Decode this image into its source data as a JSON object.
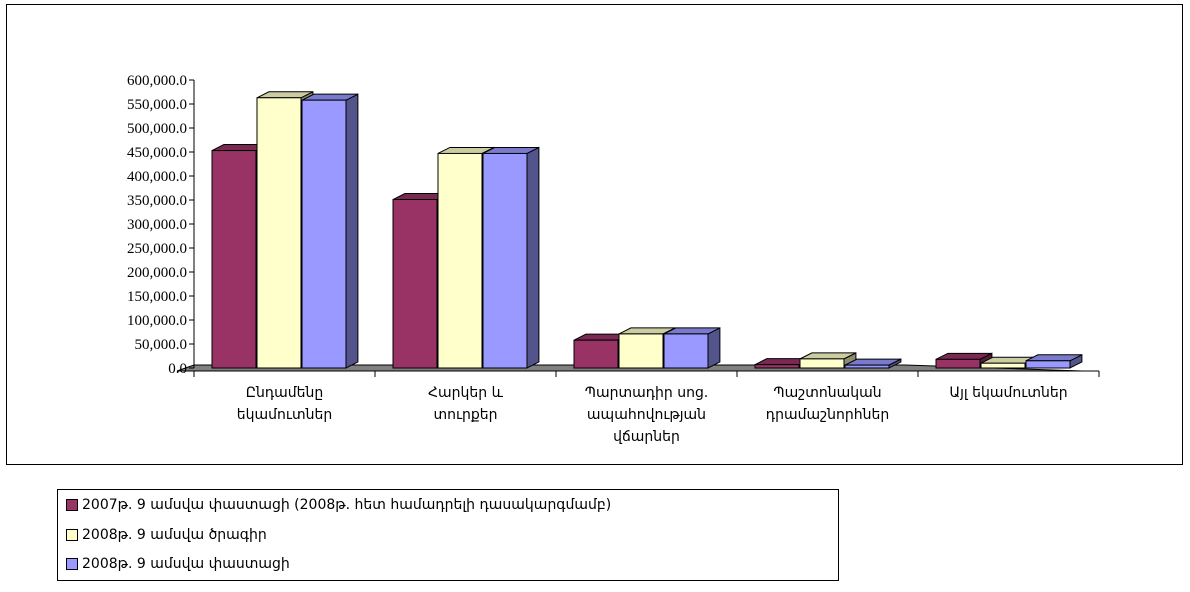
{
  "chart_data": {
    "type": "bar",
    "categories": [
      [
        "Ընդամենը",
        "եկամուտներ"
      ],
      [
        "Հարկեր և",
        "տուրքեր"
      ],
      [
        "Պարտադիր սոց.",
        "ապահովության",
        "վճարներ"
      ],
      [
        "Պաշտոնական",
        "դրամաշնորհներ"
      ],
      [
        "Այլ եկամուտներ"
      ]
    ],
    "series": [
      {
        "name": "2007թ. 9 ամսվա փաստացի (2008թ. հետ համադրելի դասակարգմամբ)",
        "color": "#993366",
        "values": [
          453000,
          351000,
          58000,
          7000,
          18000
        ]
      },
      {
        "name": "2008թ. 9 ամսվա ծրագիր",
        "color": "#FFFFCC",
        "values": [
          563000,
          447000,
          71000,
          19000,
          10000
        ]
      },
      {
        "name": "2008թ. 9 ամսվա փաստացի",
        "color": "#9999FF",
        "values": [
          558000,
          447000,
          71000,
          6000,
          15000
        ]
      }
    ],
    "ylim": [
      0,
      600000
    ],
    "yticks": [
      "0.0",
      "50,000.0",
      "100,000.0",
      "150,000.0",
      "200,000.0",
      "250,000.0",
      "300,000.0",
      "350,000.0",
      "400,000.0",
      "450,000.0",
      "500,000.0",
      "550,000.0",
      "600,000.0"
    ],
    "legend_position": "bottom",
    "grid": false
  }
}
